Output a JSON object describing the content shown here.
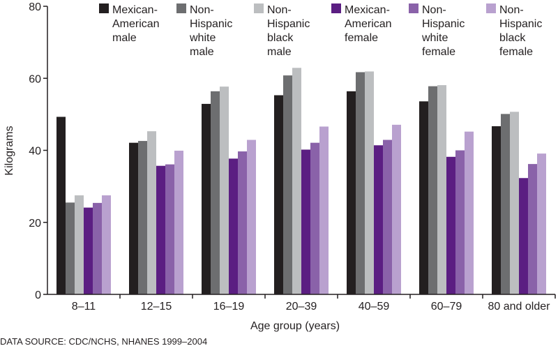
{
  "chart_data": {
    "type": "bar",
    "title": "",
    "xlabel": "Age group (years)",
    "ylabel": "Kilograms",
    "ylim": [
      0,
      80
    ],
    "yticks": [
      0,
      20,
      40,
      60,
      80
    ],
    "grid": false,
    "legend_position": "top",
    "categories": [
      "8–11",
      "12–15",
      "16–19",
      "20–39",
      "40–59",
      "60–79",
      "80 and older"
    ],
    "series": [
      {
        "name": "Mexican-American male",
        "legend_lines": [
          "Mexican-",
          "American",
          "male"
        ],
        "color": "#231f20",
        "values": [
          49.3,
          42.1,
          52.9,
          55.3,
          56.4,
          53.6,
          46.7
        ]
      },
      {
        "name": "Non-Hispanic white male",
        "legend_lines": [
          "Non-",
          "Hispanic",
          "white",
          "male"
        ],
        "color": "#6d6e70",
        "values": [
          25.5,
          42.6,
          56.4,
          60.8,
          61.7,
          57.8,
          50.1
        ]
      },
      {
        "name": "Non-Hispanic black male",
        "legend_lines": [
          "Non-",
          "Hispanic",
          "black",
          "male"
        ],
        "color": "#bcbec0",
        "values": [
          27.5,
          45.3,
          57.7,
          62.9,
          61.9,
          58.1,
          50.7
        ]
      },
      {
        "name": "Mexican-American female",
        "legend_lines": [
          "Mexican-",
          "American",
          "female"
        ],
        "color": "#5b1e82",
        "values": [
          24.1,
          35.7,
          37.7,
          40.2,
          41.4,
          38.2,
          32.3
        ]
      },
      {
        "name": "Non-Hispanic white female",
        "legend_lines": [
          "Non-",
          "Hispanic",
          "white",
          "female"
        ],
        "color": "#8a62a9",
        "values": [
          25.4,
          36.1,
          39.7,
          42.1,
          42.9,
          40.0,
          36.2
        ]
      },
      {
        "name": "Non-Hispanic black female",
        "legend_lines": [
          "Non-",
          "Hispanic",
          "black",
          "female"
        ],
        "color": "#b9a1cf",
        "values": [
          27.5,
          39.9,
          42.9,
          46.6,
          47.1,
          45.2,
          39.1
        ]
      }
    ]
  },
  "footer": {
    "source": "DATA SOURCE: CDC/NCHS, NHANES 1999–2004"
  }
}
